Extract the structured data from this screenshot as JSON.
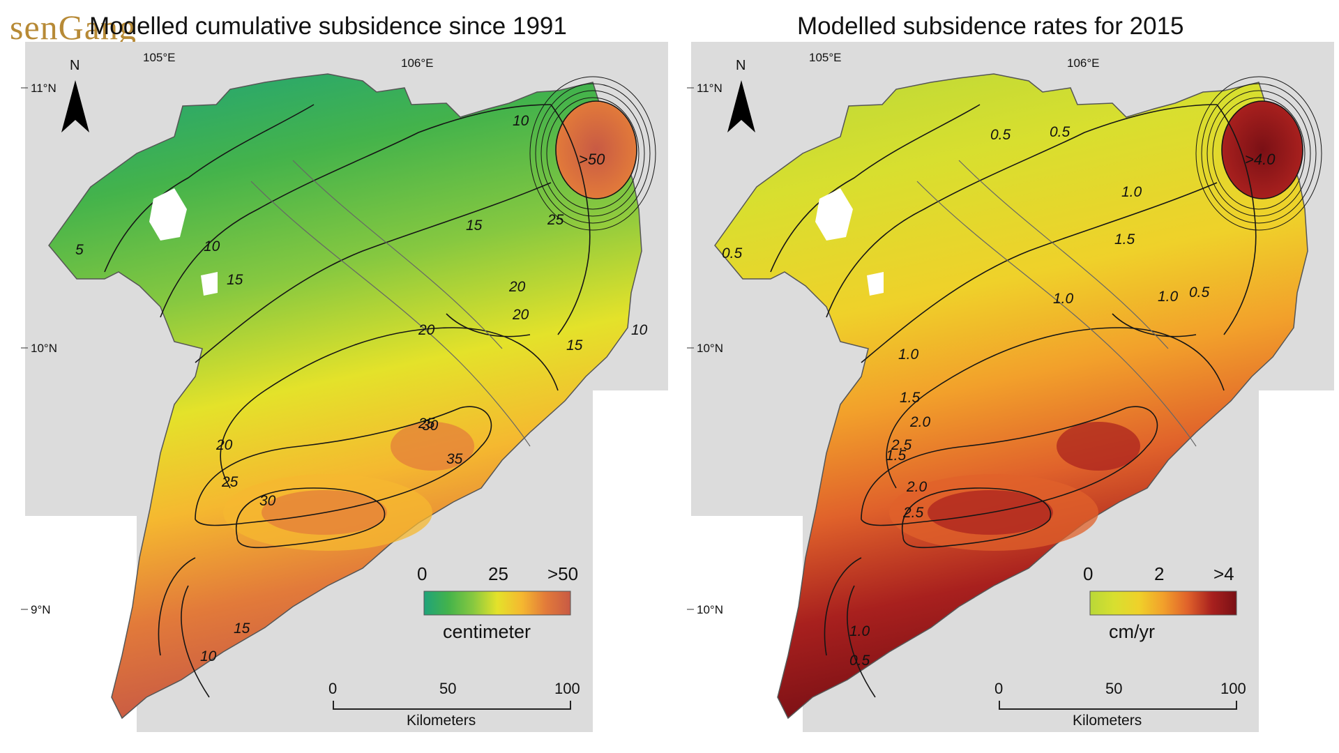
{
  "watermark": "senGang",
  "colors": {
    "land": "#dcdcdc",
    "sea": "#ffffff",
    "contour": "#151515",
    "cum_ramp": [
      "#1fa37a",
      "#44b34b",
      "#86c840",
      "#e4e22a",
      "#f5b830",
      "#e27a3a",
      "#c85a44"
    ],
    "rate_ramp": [
      "#b9d838",
      "#d8df2f",
      "#efd12a",
      "#f2a02b",
      "#e0622b",
      "#a8201e",
      "#7a1015"
    ]
  },
  "maps": [
    {
      "title": "Modelled cumulative subsidence since 1991",
      "north_label": "N",
      "lon_labels": [
        "105°E",
        "106°E"
      ],
      "lat_labels": [
        "11°N",
        "10°N",
        "9°N"
      ],
      "hotspot_label": ">50",
      "contour_labels": [
        "10",
        "5",
        "15",
        "10",
        "15",
        "25",
        "20",
        "20",
        "15",
        "10",
        "20",
        "25",
        "30",
        "35",
        "20",
        "25",
        "30",
        "15",
        "10"
      ],
      "legend": {
        "ticks": [
          "0",
          "25",
          ">50"
        ],
        "unit": "centimeter"
      },
      "scale": {
        "ticks": [
          "0",
          "50",
          "100"
        ],
        "unit": "Kilometers"
      }
    },
    {
      "title": "Modelled subsidence rates for 2015",
      "north_label": "N",
      "lon_labels": [
        "105°E",
        "106°E"
      ],
      "lat_labels": [
        "11°N",
        "10°N",
        "10°N"
      ],
      "hotspot_label": ">4.0",
      "contour_labels": [
        "0.5",
        "0.5",
        "0.5",
        "1.0",
        "1.5",
        "1.0",
        "0.5",
        "1.0",
        "1.0",
        "1.5",
        "2.0",
        "2.5",
        "1.5",
        "2.0",
        "2.5",
        "1.0",
        "0.5"
      ],
      "legend": {
        "ticks": [
          "0",
          "2",
          ">4"
        ],
        "unit": "cm/yr"
      },
      "scale": {
        "ticks": [
          "0",
          "50",
          "100"
        ],
        "unit": "Kilometers"
      }
    }
  ]
}
